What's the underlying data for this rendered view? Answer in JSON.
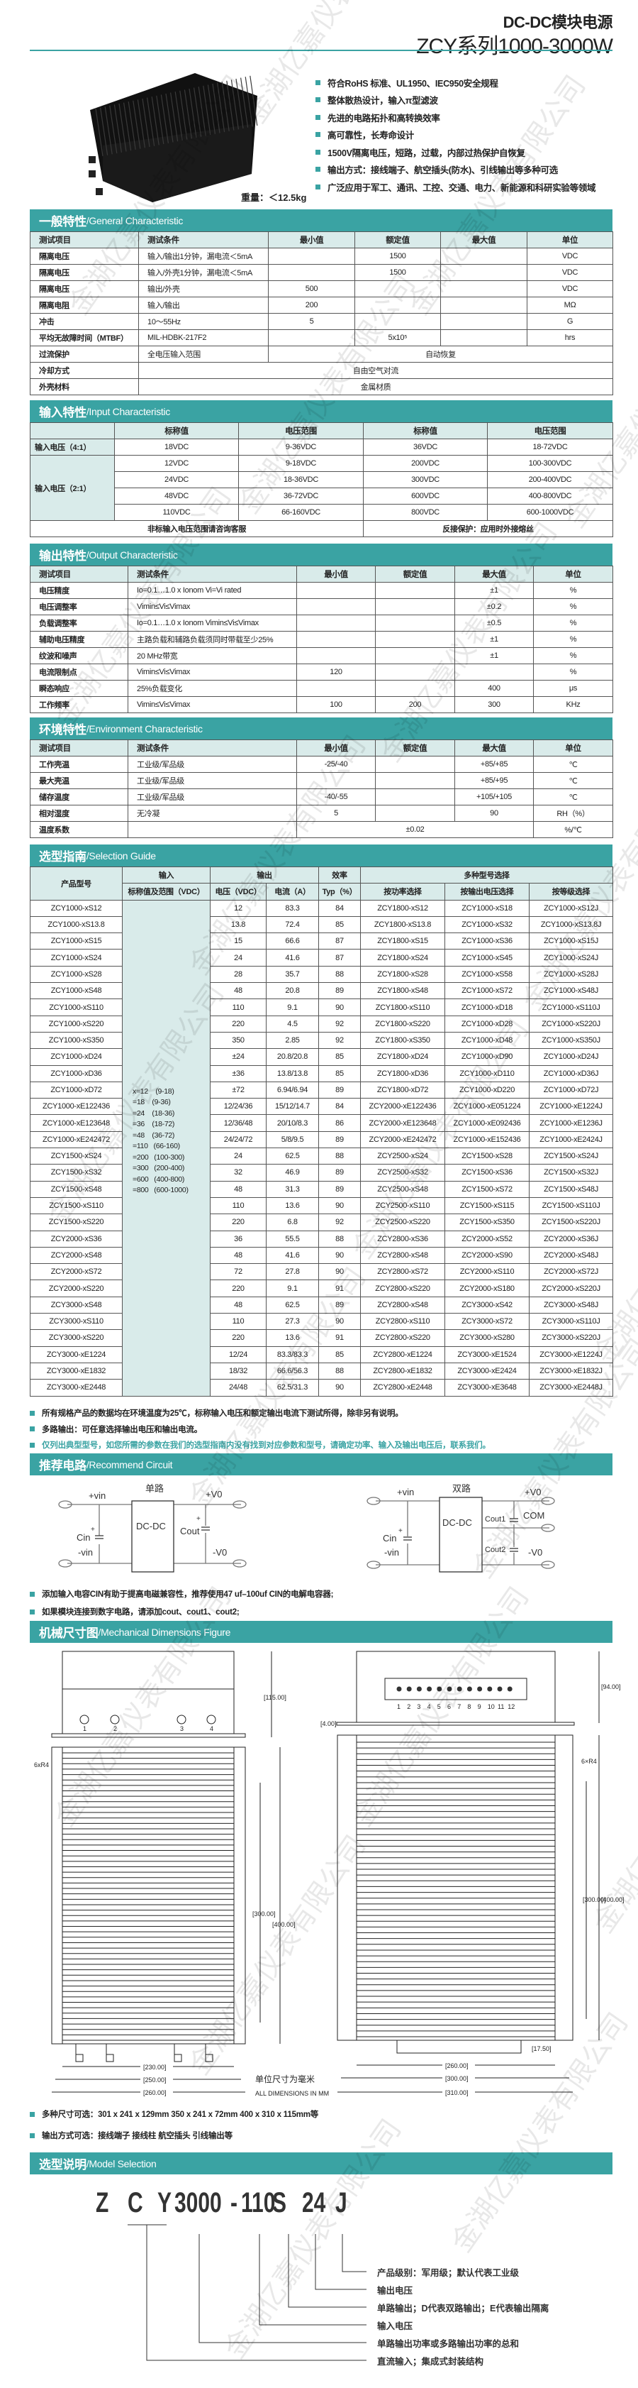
{
  "header": {
    "title_line1": "DC-DC模块电源",
    "title_line2": "ZCY系列1000-3000W",
    "accent_color": "#3aa3a3"
  },
  "features": [
    "符合RoHS 标准、UL1950、IEC950安全规程",
    "整体散热设计，输入π型滤波",
    "先进的电路拓扑和高转换效率",
    "高可靠性，长寿命设计",
    "1500V隔离电压，短路，过载，内部过热保护自恢复",
    "输出方式：接线端子、航空插头(防水)、引线输出等多种可选",
    "广泛应用于军工、通讯、工控、交通、电力、新能源和科研实验等领域"
  ],
  "weight": "重量：＜12.5kg",
  "general": {
    "title_cn": "一般特性",
    "title_en": "/General Characteristic",
    "header": [
      "测试项目",
      "测试条件",
      "最小值",
      "额定值",
      "最大值",
      "单位"
    ],
    "rows": [
      [
        "隔离电压",
        "输入/输出1分钟，漏电流＜5mA",
        "",
        "1500",
        "",
        "VDC"
      ],
      [
        "隔离电压",
        "输入/外壳1分钟，漏电流＜5mA",
        "",
        "1500",
        "",
        "VDC"
      ],
      [
        "隔离电压",
        "输出/外壳",
        "500",
        "",
        "",
        "VDC"
      ],
      [
        "隔离电阻",
        "输入/输出",
        "200",
        "",
        "",
        "MΩ"
      ],
      [
        "冲击",
        "10～55Hz",
        "5",
        "",
        "",
        "G"
      ],
      [
        "平均无故障时间（MTBF）",
        "MIL-HDBK-217F2",
        "",
        "5x10⁵",
        "",
        "hrs"
      ],
      [
        "过流保护",
        "全电压输入范围",
        "自动恢复"
      ],
      [
        "冷却方式",
        "自由空气对流"
      ],
      [
        "外壳材料",
        "金属材质"
      ]
    ]
  },
  "input": {
    "title_cn": "输入特性",
    "title_en": "/Input Characteristic",
    "header": [
      "",
      "标称值",
      "电压范围",
      "标称值",
      "电压范围"
    ],
    "groups": [
      {
        "label": "输入电压（4:1）",
        "rows": [
          [
            "18VDC",
            "9-36VDC",
            "36VDC",
            "18-72VDC"
          ]
        ]
      },
      {
        "label": "输入电压（2:1）",
        "rows": [
          [
            "12VDC",
            "9-18VDC",
            "200VDC",
            "100-300VDC"
          ],
          [
            "24VDC",
            "18-36VDC",
            "300VDC",
            "200-400VDC"
          ],
          [
            "48VDC",
            "36-72VDC",
            "600VDC",
            "400-800VDC"
          ],
          [
            "110VDC",
            "66-160VDC",
            "800VDC",
            "600-1000VDC"
          ]
        ]
      }
    ],
    "footer": [
      "非标输入电压范围请咨询客服",
      "反接保护：应用时外接熔丝"
    ]
  },
  "output": {
    "title_cn": "输出特性",
    "title_en": "/Output Characteristic",
    "header": [
      "测试项目",
      "测试条件",
      "最小值",
      "额定值",
      "最大值",
      "单位"
    ],
    "rows": [
      [
        "电压精度",
        "Io=0.1…1.0 x Ionom Vi=Vi rated",
        "",
        "",
        "±1",
        "%"
      ],
      [
        "电压调整率",
        "Vimin≤Vi≤Vimax",
        "",
        "",
        "±0.2",
        "%"
      ],
      [
        "负载调整率",
        "Io=0.1…1.0 x Ionom Vimin≤Vi≤Vimax",
        "",
        "",
        "±0.5",
        "%"
      ],
      [
        "辅助电压精度",
        "主路负载和辅路负载须同时带载至少25%",
        "",
        "",
        "±1",
        "%"
      ],
      [
        "纹波和噪声",
        "20 MHz带宽",
        "",
        "",
        "±1",
        "%"
      ],
      [
        "电流限制点",
        "Vimin≤Vi≤Vimax",
        "120",
        "",
        "",
        "%"
      ],
      [
        "瞬态响应",
        "25%负载变化",
        "",
        "",
        "400",
        "μs"
      ],
      [
        "工作频率",
        "Vimin≤Vi≤Vimax",
        "100",
        "200",
        "300",
        "KHz"
      ]
    ]
  },
  "environment": {
    "title_cn": "环境特性",
    "title_en": "/Environment Characteristic",
    "header": [
      "测试项目",
      "测试条件",
      "最小值",
      "额定值",
      "最大值",
      "单位"
    ],
    "rows": [
      [
        "工作壳温",
        "工业级/军品级",
        "-25/-40",
        "",
        "+85/+85",
        "℃"
      ],
      [
        "最大壳温",
        "工业级/军品级",
        "",
        "",
        "+85/+95",
        "℃"
      ],
      [
        "储存温度",
        "工业级/军品级",
        "-40/-55",
        "",
        "+105/+105",
        "℃"
      ],
      [
        "相对湿度",
        "无冷凝",
        "5",
        "",
        "90",
        "RH（%）"
      ],
      [
        "温度系数",
        "",
        "±0.02",
        "%/℃"
      ]
    ]
  },
  "selection": {
    "title_cn": "选型指南",
    "title_en": "/Selection Guide",
    "header_top": [
      "产品型号",
      "输入",
      "输出",
      "效率",
      "多种型号选择"
    ],
    "header_sub": [
      "标称值及范围（VDC）",
      "电压（VDC）",
      "电流（A）",
      "Typ（%）",
      "按功率选择",
      "按输出电压选择",
      "按等级选择"
    ],
    "input_values": [
      "x=12    (9-18)",
      "=18    (9-36)",
      "=24    (18-36)",
      "=36    (18-72)",
      "=48    (36-72)",
      "=110   (66-160)",
      "=200   (100-300)",
      "=300   (200-400)",
      "=600   (400-800)",
      "=800   (600-1000)"
    ],
    "rows": [
      [
        "ZCY1000-xS12",
        "12",
        "83.3",
        "84",
        "ZCY1800-xS12",
        "ZCY1000-xS18",
        "ZCY1000-xS12J"
      ],
      [
        "ZCY1000-xS13.8",
        "13.8",
        "72.4",
        "85",
        "ZCY1800-xS13.8",
        "ZCY1000-xS32",
        "ZCY1000-xS13.8J"
      ],
      [
        "ZCY1000-xS15",
        "15",
        "66.6",
        "87",
        "ZCY1800-xS15",
        "ZCY1000-xS36",
        "ZCY1000-xS15J"
      ],
      [
        "ZCY1000-xS24",
        "24",
        "41.6",
        "87",
        "ZCY1800-xS24",
        "ZCY1000-xS45",
        "ZCY1000-xS24J"
      ],
      [
        "ZCY1000-xS28",
        "28",
        "35.7",
        "88",
        "ZCY1800-xS28",
        "ZCY1000-xS58",
        "ZCY1000-xS28J"
      ],
      [
        "ZCY1000-xS48",
        "48",
        "20.8",
        "89",
        "ZCY1800-xS48",
        "ZCY1000-xS72",
        "ZCY1000-xS48J"
      ],
      [
        "ZCY1000-xS110",
        "110",
        "9.1",
        "90",
        "ZCY1800-xS110",
        "ZCY1000-xD18",
        "ZCY1000-xS110J"
      ],
      [
        "ZCY1000-xS220",
        "220",
        "4.5",
        "92",
        "ZCY1800-xS220",
        "ZCY1000-xD28",
        "ZCY1000-xS220J"
      ],
      [
        "ZCY1000-xS350",
        "350",
        "2.85",
        "92",
        "ZCY1800-xS350",
        "ZCY1000-xD48",
        "ZCY1000-xS350J"
      ],
      [
        "ZCY1000-xD24",
        "±24",
        "20.8/20.8",
        "85",
        "ZCY1800-xD24",
        "ZCY1000-xD90",
        "ZCY1000-xD24J"
      ],
      [
        "ZCY1000-xD36",
        "±36",
        "13.8/13.8",
        "85",
        "ZCY1800-xD36",
        "ZCY1000-xD110",
        "ZCY1000-xD36J"
      ],
      [
        "ZCY1000-xD72",
        "±72",
        "6.94/6.94",
        "89",
        "ZCY1800-xD72",
        "ZCY1000-xD220",
        "ZCY1000-xD72J"
      ],
      [
        "ZCY1000-xE122436",
        "12/24/36",
        "15/12/14.7",
        "84",
        "ZCY2000-xE122436",
        "ZCY1000-xE051224",
        "ZCY1000-xE1224J"
      ],
      [
        "ZCY1000-xE123648",
        "12/36/48",
        "20/10/8.3",
        "86",
        "ZCY2000-xE123648",
        "ZCY1000-xE092436",
        "ZCY1000-xE1236J"
      ],
      [
        "ZCY1000-xE242472",
        "24/24/72",
        "5/8/9.5",
        "89",
        "ZCY2000-xE242472",
        "ZCY1000-xE152436",
        "ZCY1000-xE2424J"
      ],
      [
        "ZCY1500-xS24",
        "24",
        "62.5",
        "88",
        "ZCY2500-xS24",
        "ZCY1500-xS28",
        "ZCY1500-xS24J"
      ],
      [
        "ZCY1500-xS32",
        "32",
        "46.9",
        "89",
        "ZCY2500-xS32",
        "ZCY1500-xS36",
        "ZCY1500-xS32J"
      ],
      [
        "ZCY1500-xS48",
        "48",
        "31.3",
        "89",
        "ZCY2500-xS48",
        "ZCY1500-xS72",
        "ZCY1500-xS48J"
      ],
      [
        "ZCY1500-xS110",
        "110",
        "13.6",
        "90",
        "ZCY2500-xS110",
        "ZCY1500-xS115",
        "ZCY1500-xS110J"
      ],
      [
        "ZCY1500-xS220",
        "220",
        "6.8",
        "92",
        "ZCY2500-xS220",
        "ZCY1500-xS350",
        "ZCY1500-xS220J"
      ],
      [
        "ZCY2000-xS36",
        "36",
        "55.5",
        "88",
        "ZCY2800-xS36",
        "ZCY2000-xS52",
        "ZCY2000-xS36J"
      ],
      [
        "ZCY2000-xS48",
        "48",
        "41.6",
        "90",
        "ZCY2800-xS48",
        "ZCY2000-xS90",
        "ZCY2000-xS48J"
      ],
      [
        "ZCY2000-xS72",
        "72",
        "27.8",
        "90",
        "ZCY2800-xS72",
        "ZCY2000-xS110",
        "ZCY2000-xS72J"
      ],
      [
        "ZCY2000-xS220",
        "220",
        "9.1",
        "91",
        "ZCY2800-xS220",
        "ZCY2000-xS180",
        "ZCY2000-xS220J"
      ],
      [
        "ZCY3000-xS48",
        "48",
        "62.5",
        "89",
        "ZCY2800-xS48",
        "ZCY3000-xS42",
        "ZCY3000-xS48J"
      ],
      [
        "ZCY3000-xS110",
        "110",
        "27.3",
        "90",
        "ZCY2800-xS110",
        "ZCY3000-xS72",
        "ZCY3000-xS110J"
      ],
      [
        "ZCY3000-xS220",
        "220",
        "13.6",
        "91",
        "ZCY2800-xS220",
        "ZCY3000-xS280",
        "ZCY3000-xS220J"
      ],
      [
        "ZCY3000-xE1224",
        "12/24",
        "83.3/83.3",
        "85",
        "ZCY2800-xE1224",
        "ZCY3000-xE1524",
        "ZCY3000-xE1224J"
      ],
      [
        "ZCY3000-xE1832",
        "18/32",
        "66.6/56.3",
        "88",
        "ZCY2800-xE1832",
        "ZCY3000-xE2424",
        "ZCY3000-xE1832J"
      ],
      [
        "ZCY3000-xE2448",
        "24/48",
        "62.5/31.3",
        "90",
        "ZCY2800-xE2448",
        "ZCY3000-xE3648",
        "ZCY3000-xE2448J"
      ]
    ],
    "notes": [
      "所有规格产品的数据均在环境温度为25℃，标称输入电压和额定输出电流下测试所得，除非另有说明。",
      "多路输出：可任意选择输出电压和输出电流。",
      "仅列出典型型号，如您所需的参数在我们的选型指南内没有找到对应参数和型号，请确定功率、输入及输出电压后，联系我们。"
    ]
  },
  "circuit": {
    "title_cn": "推荐电路",
    "title_en": "/Recommend Circuit",
    "single": {
      "title": "单路",
      "vin_pos": "+vin",
      "vin_neg": "-vin",
      "cin": "Cin",
      "module": "DC-DC",
      "cout": "Cout",
      "vo_pos": "+V0",
      "vo_neg": "-V0",
      "plus": "+"
    },
    "dual": {
      "title": "双路",
      "vin_pos": "+vin",
      "vin_neg": "-vin",
      "cin": "Cin",
      "module": "DC-DC",
      "cout1": "Cout1",
      "cout2": "Cout2",
      "com": "COM",
      "vo_pos": "+V0",
      "vo_neg": "-V0",
      "plus": "+"
    },
    "notes": [
      "添加输入电容CIN有助于提高电磁兼容性，推荐使用47 uf–100uf CIN的电解电容器;",
      "如果模块连接到数字电路，请添加cout、cout1、cout2;"
    ]
  },
  "mechanical": {
    "title_cn": "机械尺寸图",
    "title_en": "/Mechanical Dimensions Figure",
    "left": {
      "height": "[115.00]",
      "pins": [
        "1",
        "2",
        "3",
        "4"
      ],
      "radius": "6xR4",
      "inner_len": "[300.00]",
      "outer_len": "[400.00]",
      "w1": "[230.00]",
      "w2": "[250.00]",
      "w3": "[260.00]"
    },
    "right": {
      "height": "[94.00]",
      "base": "[4.00]",
      "pins": [
        "1",
        "2",
        "3",
        "4",
        "5",
        "6",
        "7",
        "8",
        "9",
        "10",
        "11",
        "12"
      ],
      "radius": "6×R4",
      "inner_len": "[300.00]",
      "outer_len": "[400.00]",
      "term": "[17.50]",
      "w1": "[260.00]",
      "w2": "[300.00]",
      "w3": "[310.00]"
    },
    "unit_cn": "单位尺寸为毫米",
    "unit_en": "ALL DIMENSIONS IN MM",
    "notes": [
      "多种尺寸可选：301 x 241 x 129mm  350 x 241 x 72mm   400 x 310 x 115mm等",
      "输出方式可选：接线端子 接线柱 航空插头 引线输出等"
    ]
  },
  "model": {
    "title_cn": "选型说明",
    "title_en": "/Model Selection",
    "code": [
      "Z",
      "C",
      "Y",
      "3000",
      "-",
      "110",
      "S",
      "24",
      "J"
    ],
    "labels": [
      "产品级别：军用级；默认代表工业级",
      "输出电压",
      "单路输出；D代表双路输出；E代表输出隔离",
      "输入电压",
      "单路输出功率或多路输出功率的总和",
      "直流输入；集成式封装结构"
    ]
  },
  "watermark": "金湖亿嘉仪表有限公司"
}
